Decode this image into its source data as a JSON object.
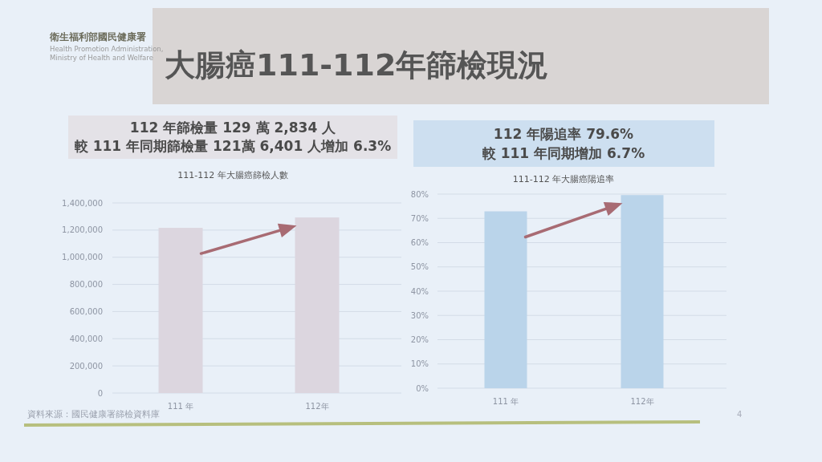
{
  "chart_data": [
    {
      "type": "bar",
      "title": "111-112 年大腸癌篩檢人數",
      "subtitle": "112 年篩檢量 129 萬 2,834 人",
      "categories": [
        "111 年",
        "112年"
      ],
      "values": [
        1216401,
        1292834
      ],
      "color": "#dcd6df",
      "ylim": [
        0,
        1400000
      ],
      "yticks": [
        0,
        {
          "value": 200000,
          "label": "200,000"
        },
        {
          "value": 400000,
          "label": "400,000"
        },
        {
          "value": 600000,
          "label": "600,000"
        },
        {
          "value": 800000,
          "label": "800,000"
        },
        {
          "value": 1000000,
          "label": "1,000,000"
        },
        {
          "value": 1200000,
          "label": "1,200,000"
        },
        {
          "value": 1400000,
          "label": "1,400,000"
        }
      ],
      "grid": "y",
      "annotations": [
        "較 111 年同期篩檢量 121萬 6,401 人增加 6.3%",
        "衛生福利部國民健康署",
        "Health Promotion Administration,",
        "Ministry of Health and Welfare",
        "大腸癌111-112年篩檢現況",
        "資料來源：國民健康署篩檢資料庫"
      ]
    },
    {
      "type": "bar",
      "title": "111-112 年大腸癌陽追率",
      "subtitle": "112 年陽追率 79.6%",
      "categories": [
        "111 年",
        "112年"
      ],
      "values": [
        72.9,
        79.6
      ],
      "color": "#bad4ea",
      "ylim": [
        0,
        80
      ],
      "yticks": [
        {
          "value": 0,
          "label": "0%"
        },
        {
          "value": 10,
          "label": "10%"
        },
        {
          "value": 20,
          "label": "20%"
        },
        {
          "value": 30,
          "label": "30%"
        },
        {
          "value": 40,
          "label": "40%"
        },
        {
          "value": 50,
          "label": "50%"
        },
        {
          "value": 60,
          "label": "60%"
        },
        {
          "value": 70,
          "label": "70%"
        },
        {
          "value": 80,
          "label": "80%"
        }
      ],
      "grid": "y",
      "annotations": [
        "較 111 年同期增加 6.7%",
        "4"
      ]
    }
  ]
}
